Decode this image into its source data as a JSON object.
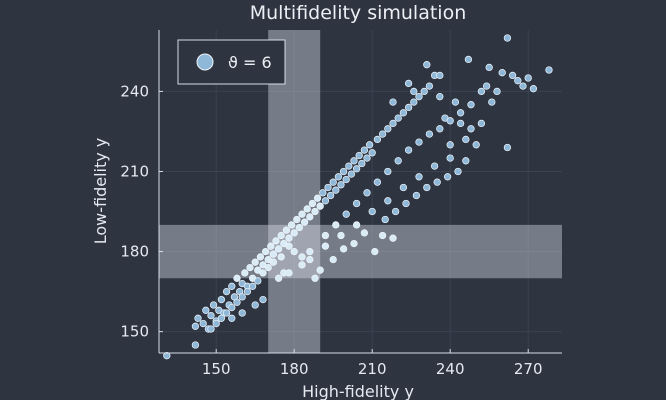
{
  "colors": {
    "background": "#2e3440",
    "axis": "#d8dee9",
    "grid": "#3b4252",
    "point_fill": "#8fb8d8",
    "point_fill_light": "#d8ebf7",
    "point_stroke": "#eef5fb",
    "band_fill": "#d8dee9",
    "text": "#e5e9f0"
  },
  "chart_data": {
    "type": "scatter",
    "title": "Multifidelity simulation",
    "xlabel": "High-fidelity y",
    "ylabel": "Low-fidelity y",
    "xlim": [
      128,
      283
    ],
    "ylim": [
      142,
      263
    ],
    "xticks": [
      150,
      180,
      210,
      240,
      270
    ],
    "yticks": [
      150,
      180,
      210,
      240
    ],
    "grid": true,
    "legend": {
      "placement": "top-left",
      "entries": [
        "ϑ = 6"
      ]
    },
    "bands": {
      "vertical": {
        "x_range": [
          170,
          190
        ]
      },
      "horizontal": {
        "y_range": [
          170,
          190
        ]
      }
    },
    "series": [
      {
        "name": "ϑ = 6",
        "points": [
          [
            131,
            141
          ],
          [
            142,
            145
          ],
          [
            142,
            152
          ],
          [
            143,
            155
          ],
          [
            145,
            153
          ],
          [
            146,
            158
          ],
          [
            147,
            151
          ],
          [
            148,
            156
          ],
          [
            149,
            160
          ],
          [
            150,
            154
          ],
          [
            151,
            158
          ],
          [
            152,
            162
          ],
          [
            153,
            157
          ],
          [
            154,
            165
          ],
          [
            155,
            160
          ],
          [
            156,
            167
          ],
          [
            157,
            163
          ],
          [
            158,
            170
          ],
          [
            159,
            165
          ],
          [
            160,
            168
          ],
          [
            161,
            172
          ],
          [
            162,
            167
          ],
          [
            163,
            174
          ],
          [
            164,
            170
          ],
          [
            165,
            176
          ],
          [
            166,
            173
          ],
          [
            167,
            178
          ],
          [
            168,
            175
          ],
          [
            169,
            180
          ],
          [
            170,
            177
          ],
          [
            171,
            182
          ],
          [
            172,
            179
          ],
          [
            173,
            184
          ],
          [
            174,
            181
          ],
          [
            175,
            186
          ],
          [
            176,
            183
          ],
          [
            177,
            188
          ],
          [
            178,
            185
          ],
          [
            179,
            190
          ],
          [
            180,
            187
          ],
          [
            181,
            192
          ],
          [
            182,
            189
          ],
          [
            183,
            194
          ],
          [
            184,
            191
          ],
          [
            185,
            196
          ],
          [
            186,
            193
          ],
          [
            187,
            198
          ],
          [
            188,
            195
          ],
          [
            189,
            200
          ],
          [
            190,
            197
          ],
          [
            191,
            202
          ],
          [
            192,
            199
          ],
          [
            193,
            204
          ],
          [
            194,
            201
          ],
          [
            195,
            206
          ],
          [
            196,
            203
          ],
          [
            197,
            208
          ],
          [
            198,
            205
          ],
          [
            199,
            210
          ],
          [
            200,
            207
          ],
          [
            201,
            212
          ],
          [
            202,
            209
          ],
          [
            203,
            214
          ],
          [
            204,
            211
          ],
          [
            205,
            216
          ],
          [
            206,
            213
          ],
          [
            207,
            218
          ],
          [
            208,
            215
          ],
          [
            209,
            220
          ],
          [
            210,
            217
          ],
          [
            212,
            222
          ],
          [
            214,
            224
          ],
          [
            216,
            226
          ],
          [
            218,
            228
          ],
          [
            220,
            230
          ],
          [
            222,
            232
          ],
          [
            224,
            234
          ],
          [
            226,
            236
          ],
          [
            228,
            238
          ],
          [
            230,
            240
          ],
          [
            232,
            242
          ],
          [
            234,
            246
          ],
          [
            236,
            238
          ],
          [
            238,
            230
          ],
          [
            240,
            220
          ],
          [
            242,
            236
          ],
          [
            244,
            228
          ],
          [
            246,
            214
          ],
          [
            248,
            226
          ],
          [
            250,
            220
          ],
          [
            252,
            240
          ],
          [
            254,
            242
          ],
          [
            256,
            236
          ],
          [
            258,
            240
          ],
          [
            260,
            247
          ],
          [
            262,
            260
          ],
          [
            264,
            246
          ],
          [
            266,
            244
          ],
          [
            268,
            242
          ],
          [
            270,
            245
          ],
          [
            272,
            241
          ],
          [
            278,
            248
          ],
          [
            262,
            219
          ],
          [
            247,
            252
          ],
          [
            255,
            249
          ],
          [
            231,
            250
          ],
          [
            236,
            246
          ],
          [
            224,
            243
          ],
          [
            218,
            236
          ],
          [
            226,
            240
          ],
          [
            176,
            172
          ],
          [
            183,
            175
          ],
          [
            188,
            170
          ],
          [
            190,
            173
          ],
          [
            195,
            177
          ],
          [
            199,
            181
          ],
          [
            203,
            183
          ],
          [
            207,
            187
          ],
          [
            211,
            180
          ],
          [
            215,
            192
          ],
          [
            219,
            195
          ],
          [
            223,
            198
          ],
          [
            227,
            201
          ],
          [
            231,
            204
          ],
          [
            235,
            206
          ],
          [
            239,
            208
          ],
          [
            243,
            210
          ],
          [
            214,
            186
          ],
          [
            218,
            185
          ],
          [
            180,
            180
          ],
          [
            178,
            182
          ],
          [
            175,
            178
          ],
          [
            172,
            176
          ],
          [
            170,
            174
          ],
          [
            168,
            172
          ],
          [
            166,
            169
          ],
          [
            164,
            167
          ],
          [
            162,
            165
          ],
          [
            160,
            163
          ],
          [
            158,
            161
          ],
          [
            156,
            159
          ],
          [
            154,
            157
          ],
          [
            152,
            155
          ],
          [
            150,
            153
          ],
          [
            148,
            151
          ],
          [
            156,
            155
          ],
          [
            160,
            157
          ],
          [
            165,
            160
          ],
          [
            168,
            162
          ],
          [
            174,
            170
          ],
          [
            178,
            172
          ],
          [
            183,
            178
          ],
          [
            186,
            180
          ],
          [
            192,
            186
          ],
          [
            196,
            190
          ],
          [
            200,
            194
          ],
          [
            204,
            198
          ],
          [
            208,
            202
          ],
          [
            212,
            206
          ],
          [
            216,
            210
          ],
          [
            220,
            214
          ],
          [
            224,
            218
          ],
          [
            228,
            221
          ],
          [
            232,
            224
          ],
          [
            236,
            226
          ],
          [
            240,
            229
          ],
          [
            244,
            232
          ],
          [
            248,
            235
          ],
          [
            252,
            228
          ],
          [
            246,
            222
          ],
          [
            240,
            215
          ],
          [
            234,
            212
          ],
          [
            228,
            208
          ],
          [
            222,
            204
          ],
          [
            216,
            199
          ],
          [
            210,
            195
          ],
          [
            204,
            190
          ],
          [
            198,
            186
          ],
          [
            192,
            182
          ],
          [
            186,
            177
          ]
        ]
      }
    ]
  }
}
